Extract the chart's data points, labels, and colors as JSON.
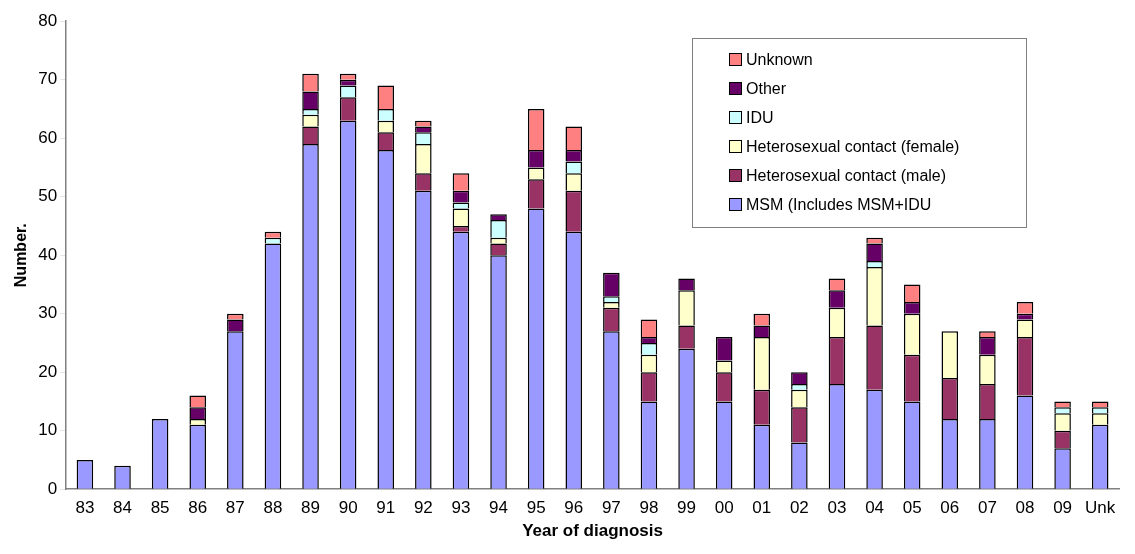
{
  "chart_data": {
    "type": "bar",
    "stacked": true,
    "xlabel": "Year of diagnosis",
    "ylabel": "Number.",
    "categories": [
      "83",
      "84",
      "85",
      "86",
      "87",
      "88",
      "89",
      "90",
      "91",
      "92",
      "93",
      "94",
      "95",
      "96",
      "97",
      "98",
      "99",
      "00",
      "01",
      "02",
      "03",
      "04",
      "05",
      "06",
      "07",
      "08",
      "09",
      "Unk"
    ],
    "series": [
      {
        "name": "MSM (Includes MSM+IDU",
        "color": "#9999ff",
        "values": [
          5,
          4,
          12,
          11,
          27,
          42,
          59,
          63,
          58,
          51,
          44,
          40,
          48,
          44,
          27,
          15,
          24,
          15,
          11,
          8,
          18,
          17,
          15,
          12,
          12,
          16,
          7,
          11
        ]
      },
      {
        "name": "Heterosexual contact (male)",
        "color": "#993366",
        "values": [
          0,
          0,
          0,
          0,
          0,
          0,
          3,
          4,
          3,
          3,
          1,
          2,
          5,
          7,
          4,
          5,
          4,
          5,
          6,
          6,
          8,
          11,
          8,
          7,
          6,
          10,
          3,
          0
        ]
      },
      {
        "name": "Heterosexual contact (female)",
        "color": "#ffffcc",
        "values": [
          0,
          0,
          0,
          1,
          0,
          0,
          2,
          0,
          2,
          5,
          3,
          1,
          2,
          3,
          1,
          3,
          6,
          2,
          9,
          3,
          5,
          10,
          7,
          8,
          5,
          3,
          3,
          2
        ]
      },
      {
        "name": "IDU",
        "color": "#ccffff",
        "values": [
          0,
          0,
          0,
          0,
          0,
          1,
          1,
          2,
          2,
          2,
          1,
          3,
          0,
          2,
          1,
          2,
          0,
          0,
          0,
          1,
          0,
          1,
          0,
          0,
          0,
          0,
          1,
          1
        ]
      },
      {
        "name": "Other",
        "color": "#660066",
        "values": [
          0,
          0,
          0,
          2,
          2,
          0,
          3,
          1,
          0,
          1,
          2,
          1,
          3,
          2,
          4,
          1,
          2,
          4,
          2,
          2,
          3,
          3,
          2,
          0,
          3,
          1,
          0,
          0
        ]
      },
      {
        "name": "Unknown",
        "color": "#ff8080",
        "values": [
          0,
          0,
          0,
          2,
          1,
          1,
          3,
          1,
          4,
          1,
          3,
          0,
          7,
          4,
          0,
          3,
          0,
          0,
          2,
          0,
          2,
          1,
          3,
          0,
          1,
          2,
          1,
          1
        ]
      }
    ],
    "ylim": [
      0,
      80
    ],
    "yticks": [
      0,
      10,
      20,
      30,
      40,
      50,
      60,
      70,
      80
    ],
    "grid": false,
    "legend": "top right"
  }
}
